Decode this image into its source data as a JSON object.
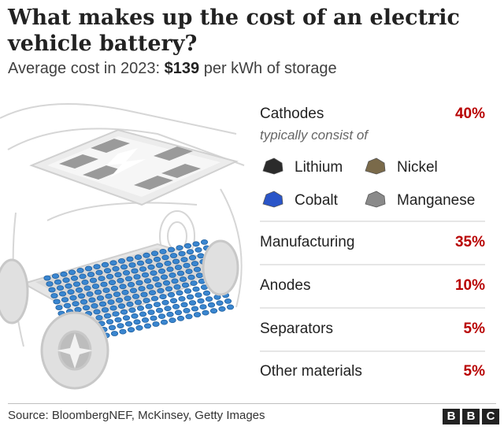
{
  "title": "What makes up the cost of an electric vehicle battery?",
  "subtitle": {
    "prefix": "Average cost in 2023: ",
    "value": "$139",
    "suffix": " per kWh of storage"
  },
  "cathode_note": "typically consist of",
  "materials": [
    {
      "name": "Lithium",
      "color": "#2b2b2b"
    },
    {
      "name": "Nickel",
      "color": "#7a6a4a"
    },
    {
      "name": "Cobalt",
      "color": "#2a55c8"
    },
    {
      "name": "Manganese",
      "color": "#8a8a8a"
    }
  ],
  "chart_data": {
    "type": "table",
    "categories": [
      "Cathodes",
      "Manufacturing",
      "Anodes",
      "Separators",
      "Other materials"
    ],
    "values": [
      40,
      35,
      10,
      5,
      5
    ],
    "value_labels": [
      "40%",
      "35%",
      "10%",
      "5%",
      "5%"
    ],
    "unit": "%"
  },
  "source": "Source: BloombergNEF, McKinsey, Getty Images",
  "logo": [
    "B",
    "B",
    "C"
  ],
  "colors": {
    "accent_red": "#b80000",
    "battery_blue": "#3a86d0",
    "divider": "#cccccc"
  }
}
